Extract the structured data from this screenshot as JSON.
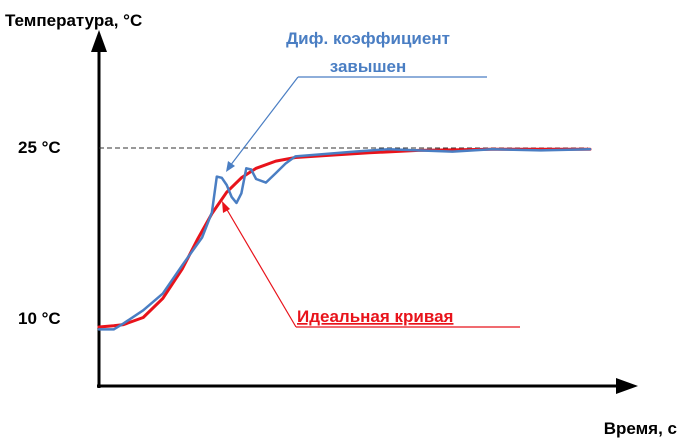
{
  "chart_data": {
    "type": "line",
    "ylabel": "Температура, °C",
    "xlabel": "Время, с",
    "y_ticks": [
      {
        "value": 10,
        "label": "10 °C"
      },
      {
        "value": 25,
        "label": "25 °C"
      }
    ],
    "setpoint_value": 25,
    "series": [
      {
        "name": "Идеальная кривая",
        "color": "#e8131b",
        "points": [
          [
            0,
            10.0
          ],
          [
            3,
            10.1
          ],
          [
            5,
            10.2
          ],
          [
            9,
            10.8
          ],
          [
            13,
            12.4
          ],
          [
            17,
            14.9
          ],
          [
            20,
            17.3
          ],
          [
            23,
            19.5
          ],
          [
            26,
            21.3
          ],
          [
            29,
            22.5
          ],
          [
            32,
            23.3
          ],
          [
            36,
            23.9
          ],
          [
            40,
            24.2
          ],
          [
            47,
            24.4
          ],
          [
            55,
            24.6
          ],
          [
            65,
            24.8
          ],
          [
            80,
            24.9
          ],
          [
            100,
            24.9
          ]
        ]
      },
      {
        "name": "Диф. коэффициент завышен",
        "color": "#4a7ec3",
        "points": [
          [
            0,
            9.8
          ],
          [
            3,
            9.8
          ],
          [
            5,
            10.3
          ],
          [
            9,
            11.4
          ],
          [
            13,
            12.8
          ],
          [
            17,
            15.2
          ],
          [
            21,
            17.5
          ],
          [
            23,
            19.6
          ],
          [
            24,
            22.6
          ],
          [
            25,
            22.5
          ],
          [
            26,
            21.9
          ],
          [
            27,
            20.9
          ],
          [
            28,
            20.4
          ],
          [
            29,
            21.2
          ],
          [
            30,
            23.3
          ],
          [
            31,
            23.2
          ],
          [
            32,
            22.4
          ],
          [
            34,
            22.1
          ],
          [
            36,
            22.9
          ],
          [
            38,
            23.7
          ],
          [
            40,
            24.3
          ],
          [
            46,
            24.5
          ],
          [
            52,
            24.7
          ],
          [
            59,
            24.9
          ],
          [
            65,
            24.8
          ],
          [
            72,
            24.7
          ],
          [
            80,
            24.9
          ],
          [
            90,
            24.8
          ],
          [
            100,
            24.9
          ]
        ]
      }
    ],
    "annotations": [
      {
        "target_series": 1,
        "lines": [
          "Диф. коэффициент",
          "завышен"
        ]
      },
      {
        "target_series": 0,
        "lines": [
          "Идеальная кривая"
        ]
      }
    ]
  }
}
